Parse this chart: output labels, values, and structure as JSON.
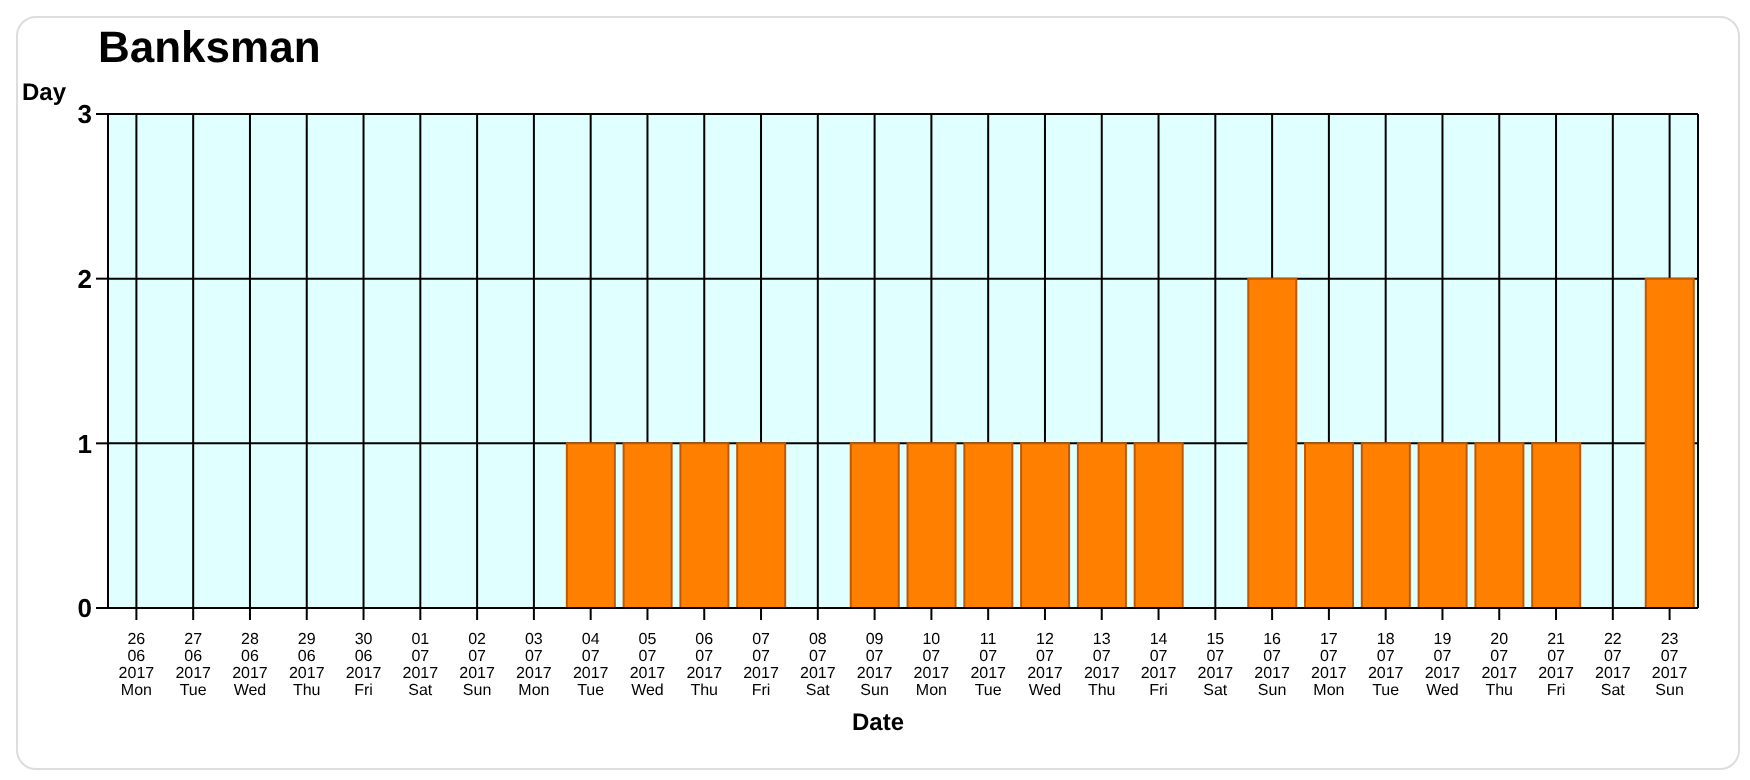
{
  "chart_data": {
    "type": "bar",
    "title": "Banksman",
    "xlabel": "Date",
    "ylabel": "Day",
    "categories": [
      "26\n06\n2017\nMon",
      "27\n06\n2017\nTue",
      "28\n06\n2017\nWed",
      "29\n06\n2017\nThu",
      "30\n06\n2017\nFri",
      "01\n07\n2017\nSat",
      "02\n07\n2017\nSun",
      "03\n07\n2017\nMon",
      "04\n07\n2017\nTue",
      "05\n07\n2017\nWed",
      "06\n07\n2017\nThu",
      "07\n07\n2017\nFri",
      "08\n07\n2017\nSat",
      "09\n07\n2017\nSun",
      "10\n07\n2017\nMon",
      "11\n07\n2017\nTue",
      "12\n07\n2017\nWed",
      "13\n07\n2017\nThu",
      "14\n07\n2017\nFri",
      "15\n07\n2017\nSat",
      "16\n07\n2017\nSun",
      "17\n07\n2017\nMon",
      "18\n07\n2017\nTue",
      "19\n07\n2017\nWed",
      "20\n07\n2017\nThu",
      "21\n07\n2017\nFri",
      "22\n07\n2017\nSat",
      "23\n07\n2017\nSun"
    ],
    "values": [
      0,
      0,
      0,
      0,
      0,
      0,
      0,
      0,
      1,
      1,
      1,
      1,
      0,
      1,
      1,
      1,
      1,
      1,
      1,
      0,
      2,
      1,
      1,
      1,
      1,
      1,
      0,
      2
    ],
    "color": "#ff8000",
    "ylim": [
      0,
      3
    ],
    "yticks": [
      0,
      1,
      2,
      3
    ],
    "grid": true
  }
}
